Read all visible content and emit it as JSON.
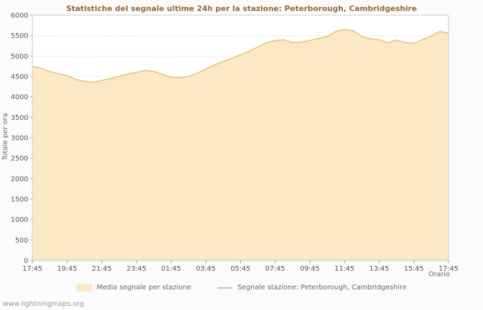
{
  "page": {
    "watermark": "www.lightningmaps.org"
  },
  "chart_data": {
    "type": "area",
    "title": "Statistiche del segnale ultime 24h per la stazione: Peterborough, Cambridgeshire",
    "xlabel": "Orario",
    "ylabel": "Totale per ora",
    "ylim": [
      0,
      6000
    ],
    "y_ticks": [
      0,
      500,
      1000,
      1500,
      2000,
      2500,
      3000,
      3500,
      4000,
      4500,
      5000,
      5500,
      6000
    ],
    "x_tick_labels": [
      "17:45",
      "19:45",
      "21:45",
      "23:45",
      "01:45",
      "03:45",
      "05:45",
      "07:45",
      "09:45",
      "11:45",
      "13:45",
      "15:45",
      "17:45"
    ],
    "x_tick_every": 4,
    "grid": true,
    "legend_position": "bottom",
    "values": [
      4750,
      4700,
      4620,
      4570,
      4520,
      4430,
      4380,
      4360,
      4400,
      4450,
      4500,
      4560,
      4600,
      4650,
      4620,
      4550,
      4480,
      4470,
      4500,
      4580,
      4680,
      4780,
      4870,
      4940,
      5030,
      5120,
      5220,
      5320,
      5380,
      5400,
      5330,
      5340,
      5380,
      5430,
      5480,
      5600,
      5650,
      5620,
      5480,
      5420,
      5400,
      5320,
      5390,
      5330,
      5310,
      5400,
      5490,
      5600,
      5560
    ],
    "legend": [
      {
        "type": "area",
        "label": "Media segnale per stazione"
      },
      {
        "type": "line",
        "label": "Segnale stazione: Peterborough, Cambridgeshire"
      }
    ],
    "colors": {
      "area_fill": "#fbe8c5",
      "area_line": "#e3c07f",
      "grid": "#bbbbbb",
      "frame": "#cccccc",
      "title": "#996633",
      "text": "#555555"
    }
  }
}
